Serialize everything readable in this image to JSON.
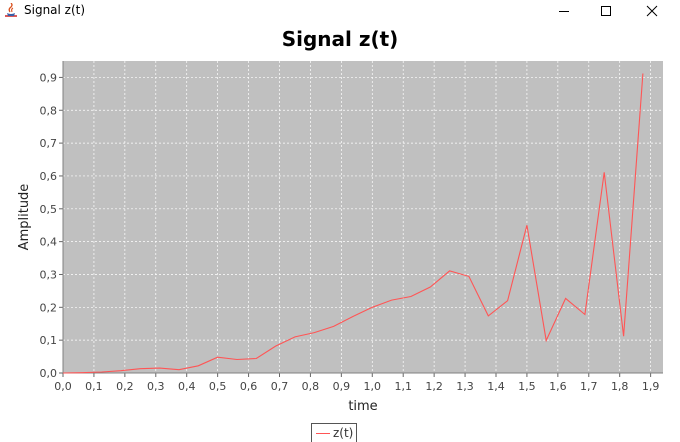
{
  "window": {
    "title": "Signal z(t)",
    "controls": [
      "minimize",
      "maximize",
      "close"
    ]
  },
  "colors": {
    "plot_background": "#c0c0c0",
    "series_line": "#ff5555",
    "gridline": "#ffffff"
  },
  "chart_data": {
    "type": "line",
    "title": "Signal z(t)",
    "xlabel": "time",
    "ylabel": "Amplitude",
    "xlim": [
      0.0,
      1.94
    ],
    "ylim": [
      0.0,
      0.95
    ],
    "grid": true,
    "legend_placement": "bottom-center",
    "x_ticks": [
      "0,0",
      "0,1",
      "0,2",
      "0,3",
      "0,4",
      "0,5",
      "0,6",
      "0,7",
      "0,8",
      "0,9",
      "1,0",
      "1,1",
      "1,2",
      "1,3",
      "1,4",
      "1,5",
      "1,6",
      "1,7",
      "1,8",
      "1,9"
    ],
    "y_ticks": [
      "0,0",
      "0,1",
      "0,2",
      "0,3",
      "0,4",
      "0,5",
      "0,6",
      "0,7",
      "0,8",
      "0,9"
    ],
    "series": [
      {
        "name": "z(t)",
        "color": "#ff5555",
        "x": [
          0.0,
          0.0625,
          0.125,
          0.1875,
          0.25,
          0.3125,
          0.375,
          0.4375,
          0.5,
          0.5625,
          0.625,
          0.6875,
          0.75,
          0.8125,
          0.875,
          0.9375,
          1.0,
          1.0625,
          1.125,
          1.1875,
          1.25,
          1.3125,
          1.375,
          1.4375,
          1.5,
          1.5625,
          1.625,
          1.6875,
          1.75,
          1.8125,
          1.875
        ],
        "y": [
          0.0,
          0.001,
          0.003,
          0.007,
          0.013,
          0.015,
          0.01,
          0.022,
          0.048,
          0.041,
          0.044,
          0.082,
          0.11,
          0.123,
          0.142,
          0.172,
          0.2,
          0.222,
          0.233,
          0.262,
          0.311,
          0.294,
          0.174,
          0.22,
          0.45,
          0.099,
          0.227,
          0.178,
          0.611,
          0.112,
          0.912
        ]
      }
    ]
  }
}
